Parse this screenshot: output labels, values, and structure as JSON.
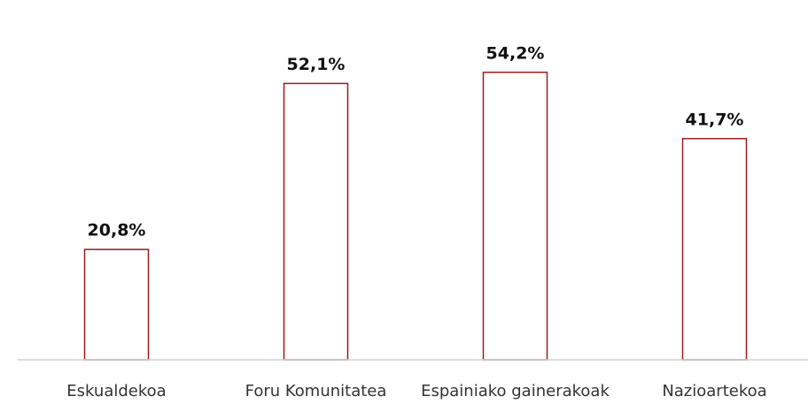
{
  "chart_data": {
    "type": "bar",
    "categories": [
      "Eskualdekoa",
      "Foru Komunitatea",
      "Espainiako gainerakoak",
      "Nazioartekoa"
    ],
    "values": [
      20.8,
      52.1,
      54.2,
      41.7
    ],
    "value_labels": [
      "20,8%",
      "52,1%",
      "54,2%",
      "41,7%"
    ],
    "color": "#9b1b1b",
    "ylim": [
      0,
      60
    ]
  }
}
